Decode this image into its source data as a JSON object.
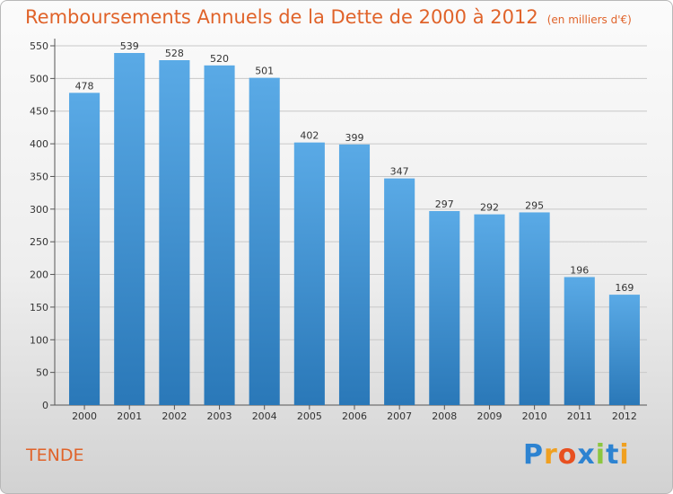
{
  "chart_data": {
    "type": "bar",
    "title": "Remboursements Annuels de la Dette de 2000 à 2012",
    "subtitle": "(en milliers d'€)",
    "categories": [
      "2000",
      "2001",
      "2002",
      "2003",
      "2004",
      "2005",
      "2006",
      "2007",
      "2008",
      "2009",
      "2010",
      "2011",
      "2012"
    ],
    "values": [
      478,
      539,
      528,
      520,
      501,
      402,
      399,
      347,
      297,
      292,
      295,
      196,
      169
    ],
    "ylim": [
      0,
      550
    ],
    "yticks": [
      0,
      50,
      100,
      150,
      200,
      250,
      300,
      350,
      400,
      450,
      500,
      550
    ],
    "grid": true,
    "bar_color_top": "#5aaae6",
    "bar_color_bottom": "#2a78b8"
  },
  "location": "TENDE",
  "logo": {
    "letters": [
      "P",
      "r",
      "o",
      "x",
      "i",
      "t",
      "i"
    ],
    "colors": [
      "#2d83d1",
      "#f0a020",
      "#e85020",
      "#2d83d1",
      "#8cc63f",
      "#2d83d1",
      "#f0a020"
    ]
  }
}
